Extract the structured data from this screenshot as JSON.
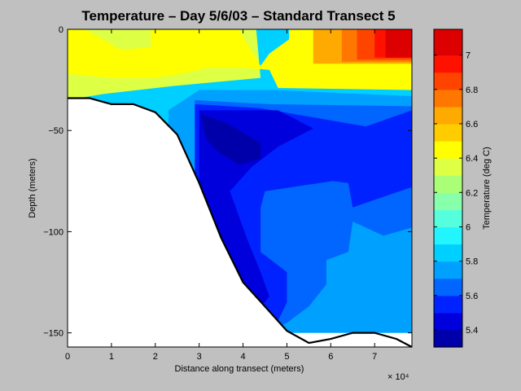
{
  "chart_data": {
    "type": "heatmap",
    "title": "Temperature – Day 5/6/03 – Standard Transect 5",
    "xlabel": "Distance along transect (meters)",
    "ylabel": "Depth (meters)",
    "x_exponent_label": "× 10⁴",
    "xlim": [
      0,
      7.85
    ],
    "ylim": [
      -157,
      0
    ],
    "x_ticks": [
      0,
      1,
      2,
      3,
      4,
      5,
      6,
      7
    ],
    "x_tick_labels": [
      "0",
      "1",
      "2",
      "3",
      "4",
      "5",
      "6",
      "7"
    ],
    "y_ticks": [
      0,
      -50,
      -100,
      -150
    ],
    "y_tick_labels": [
      "0",
      "−50",
      "−100",
      "−150"
    ],
    "colorbar": {
      "label": "Temperature (deg C)",
      "range": [
        5.3,
        7.15
      ],
      "ticks": [
        5.4,
        5.6,
        5.8,
        6,
        6.2,
        6.4,
        6.6,
        6.8,
        7
      ],
      "tick_labels": [
        "5.4",
        "5.6",
        "5.8",
        "6",
        "6.2",
        "6.4",
        "6.6",
        "6.8",
        "7"
      ],
      "bands": [
        {
          "from": 5.3,
          "to": 5.4,
          "color": "#0000aa"
        },
        {
          "from": 5.4,
          "to": 5.5,
          "color": "#0000dd"
        },
        {
          "from": 5.5,
          "to": 5.6,
          "color": "#0022ff"
        },
        {
          "from": 5.6,
          "to": 5.7,
          "color": "#0066ff"
        },
        {
          "from": 5.7,
          "to": 5.8,
          "color": "#00a0ff"
        },
        {
          "from": 5.8,
          "to": 5.9,
          "color": "#00d0ff"
        },
        {
          "from": 5.9,
          "to": 6.0,
          "color": "#22f5ff"
        },
        {
          "from": 6.0,
          "to": 6.1,
          "color": "#55ffdd"
        },
        {
          "from": 6.1,
          "to": 6.2,
          "color": "#88ffaa"
        },
        {
          "from": 6.2,
          "to": 6.3,
          "color": "#aaff77"
        },
        {
          "from": 6.3,
          "to": 6.4,
          "color": "#ddff44"
        },
        {
          "from": 6.4,
          "to": 6.5,
          "color": "#ffff00"
        },
        {
          "from": 6.5,
          "to": 6.6,
          "color": "#ffcc00"
        },
        {
          "from": 6.6,
          "to": 6.7,
          "color": "#ffaa00"
        },
        {
          "from": 6.7,
          "to": 6.8,
          "color": "#ff7700"
        },
        {
          "from": 6.8,
          "to": 6.9,
          "color": "#ff4400"
        },
        {
          "from": 6.9,
          "to": 7.0,
          "color": "#ff1100"
        },
        {
          "from": 7.0,
          "to": 7.15,
          "color": "#dd0000"
        }
      ]
    },
    "contour_regions": [
      {
        "value": 5.95,
        "color": "#00d0ff",
        "points": [
          [
            0,
            0
          ],
          [
            7.85,
            0
          ],
          [
            7.85,
            -150
          ],
          [
            0,
            -150
          ]
        ]
      },
      {
        "value": 6.45,
        "color": "#ddff44",
        "points": [
          [
            0,
            0
          ],
          [
            4.3,
            0
          ],
          [
            4.4,
            -24
          ],
          [
            2.4,
            -28
          ],
          [
            0.8,
            -32
          ],
          [
            0,
            -35
          ]
        ]
      },
      {
        "value": 6.5,
        "color": "#ffff00",
        "points": [
          [
            0,
            0
          ],
          [
            0.4,
            0
          ],
          [
            1.2,
            -10
          ],
          [
            1.9,
            -9
          ],
          [
            1.9,
            0
          ],
          [
            3.9,
            0
          ],
          [
            4.4,
            -18
          ],
          [
            4.6,
            -12
          ],
          [
            5.05,
            -5
          ],
          [
            5.05,
            0
          ],
          [
            7.85,
            0
          ],
          [
            7.85,
            -30
          ],
          [
            4.8,
            -29
          ],
          [
            4.6,
            -20
          ],
          [
            4.0,
            -19
          ],
          [
            3.2,
            -19
          ],
          [
            2.6,
            -22
          ],
          [
            2.0,
            -24
          ],
          [
            1.0,
            -24
          ],
          [
            0,
            -22
          ]
        ]
      },
      {
        "value": 6.65,
        "color": "#ffaa00",
        "points": [
          [
            5.6,
            0
          ],
          [
            7.85,
            0
          ],
          [
            7.85,
            -17
          ],
          [
            5.6,
            -17
          ]
        ]
      },
      {
        "value": 6.75,
        "color": "#ff7700",
        "points": [
          [
            6.25,
            0
          ],
          [
            7.85,
            0
          ],
          [
            7.85,
            -16
          ],
          [
            6.25,
            -16
          ]
        ]
      },
      {
        "value": 6.85,
        "color": "#ff4400",
        "points": [
          [
            6.6,
            0
          ],
          [
            7.85,
            0
          ],
          [
            7.85,
            -15
          ],
          [
            6.6,
            -15
          ]
        ]
      },
      {
        "value": 6.95,
        "color": "#ff1100",
        "points": [
          [
            7.0,
            0
          ],
          [
            7.85,
            0
          ],
          [
            7.85,
            -14
          ],
          [
            7.0,
            -14
          ]
        ]
      },
      {
        "value": 7.05,
        "color": "#dd0000",
        "points": [
          [
            7.25,
            0
          ],
          [
            7.85,
            0
          ],
          [
            7.85,
            -14
          ],
          [
            7.25,
            -14
          ]
        ]
      },
      {
        "value": 5.85,
        "color": "#00a0ff",
        "points": [
          [
            2.3,
            -40
          ],
          [
            3.0,
            -30
          ],
          [
            4.7,
            -30
          ],
          [
            7.85,
            -33
          ],
          [
            7.85,
            -150
          ],
          [
            2.3,
            -150
          ]
        ]
      },
      {
        "value": 5.75,
        "color": "#0066ff",
        "points": [
          [
            2.9,
            -35
          ],
          [
            4.6,
            -37
          ],
          [
            7.85,
            -38
          ],
          [
            7.85,
            -98
          ],
          [
            7.2,
            -102
          ],
          [
            6.5,
            -95
          ],
          [
            6.4,
            -110
          ],
          [
            5.9,
            -114
          ],
          [
            5.9,
            -126
          ],
          [
            5.5,
            -137
          ],
          [
            5.0,
            -145
          ],
          [
            4.5,
            -150
          ],
          [
            3.0,
            -150
          ],
          [
            2.9,
            -90
          ]
        ]
      },
      {
        "value": 5.65,
        "color": "#0022ff",
        "points": [
          [
            2.9,
            -37
          ],
          [
            4.4,
            -39
          ],
          [
            6.8,
            -48
          ],
          [
            7.85,
            -40
          ],
          [
            7.85,
            -78
          ],
          [
            7.3,
            -82
          ],
          [
            6.5,
            -88
          ],
          [
            6.4,
            -76
          ],
          [
            6.05,
            -75
          ],
          [
            4.5,
            -80
          ],
          [
            4.4,
            -88
          ],
          [
            4.4,
            -110
          ],
          [
            5.0,
            -120
          ],
          [
            5.0,
            -135
          ],
          [
            4.8,
            -144
          ],
          [
            4.6,
            -150
          ],
          [
            3.5,
            -150
          ],
          [
            2.9,
            -90
          ]
        ]
      },
      {
        "value": 5.55,
        "color": "#0000dd",
        "points": [
          [
            3.0,
            -40
          ],
          [
            4.8,
            -40
          ],
          [
            5.6,
            -49
          ],
          [
            4.8,
            -58
          ],
          [
            4.2,
            -68
          ],
          [
            3.7,
            -80
          ],
          [
            4.1,
            -104
          ],
          [
            4.4,
            -120
          ],
          [
            4.6,
            -132
          ],
          [
            4.3,
            -140
          ],
          [
            3.8,
            -130
          ],
          [
            3.0,
            -90
          ]
        ]
      },
      {
        "value": 5.45,
        "color": "#0000aa",
        "points": [
          [
            3.05,
            -42
          ],
          [
            3.6,
            -46
          ],
          [
            4.4,
            -56
          ],
          [
            4.4,
            -64
          ],
          [
            3.9,
            -67
          ],
          [
            3.4,
            -60
          ],
          [
            3.15,
            -54
          ]
        ]
      }
    ],
    "bathymetry": [
      [
        0,
        -34
      ],
      [
        0.5,
        -34
      ],
      [
        1.0,
        -37
      ],
      [
        1.5,
        -37
      ],
      [
        2.0,
        -41
      ],
      [
        2.5,
        -52
      ],
      [
        3.0,
        -76
      ],
      [
        3.5,
        -103
      ],
      [
        4.0,
        -125
      ],
      [
        4.5,
        -137
      ],
      [
        5.0,
        -149
      ],
      [
        5.5,
        -155
      ],
      [
        6.0,
        -153
      ],
      [
        6.5,
        -150
      ],
      [
        7.0,
        -150
      ],
      [
        7.5,
        -153
      ],
      [
        7.85,
        -157
      ]
    ]
  }
}
